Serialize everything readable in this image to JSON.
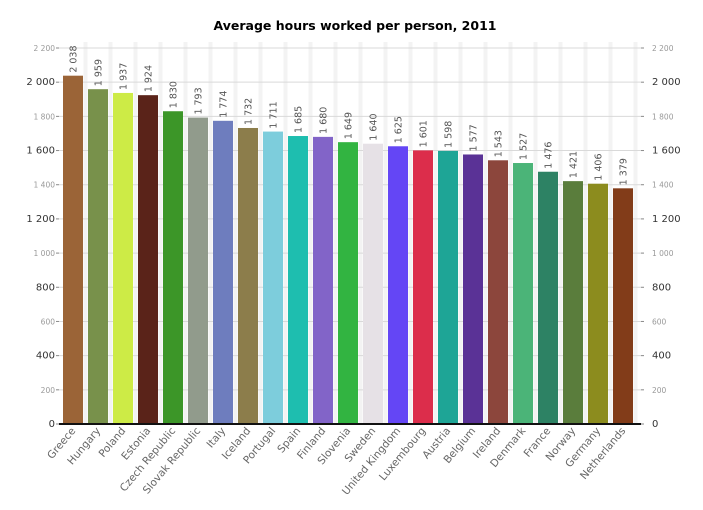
{
  "chart_data": {
    "type": "bar",
    "title": "Average hours worked per person, 2011",
    "xlabel": "",
    "ylabel": "",
    "ylim": [
      0,
      2200
    ],
    "grid": true,
    "major_ticks": [
      0,
      400,
      800,
      1200,
      1600,
      2000
    ],
    "minor_ticks": [
      200,
      600,
      1000,
      1400,
      1800,
      2200
    ],
    "tick_labels": {
      "0": "0",
      "200": "200",
      "400": "400",
      "600": "600",
      "800": "800",
      "1000": "1 000",
      "1200": "1 200",
      "1400": "1 400",
      "1600": "1 600",
      "1800": "1 800",
      "2000": "2 000",
      "2200": "2 200"
    },
    "categories": [
      "Greece",
      "Hungary",
      "Poland",
      "Estonia",
      "Czech Republic",
      "Slovak Republic",
      "Italy",
      "Iceland",
      "Portugal",
      "Spain",
      "Finland",
      "Slovenia",
      "Sweden",
      "United Kingdom",
      "Luxembourg",
      "Austria",
      "Belgium",
      "Ireland",
      "Denmark",
      "France",
      "Norway",
      "Germany",
      "Netherlands"
    ],
    "values": [
      2038,
      1959,
      1937,
      1924,
      1830,
      1793,
      1774,
      1732,
      1711,
      1685,
      1680,
      1649,
      1640,
      1625,
      1601,
      1598,
      1577,
      1543,
      1527,
      1476,
      1421,
      1406,
      1379
    ],
    "value_labels": [
      "2 038",
      "1 959",
      "1 937",
      "1 924",
      "1 830",
      "1 793",
      "1 774",
      "1 732",
      "1 711",
      "1 685",
      "1 680",
      "1 649",
      "1 640",
      "1 625",
      "1 601",
      "1 598",
      "1 577",
      "1 543",
      "1 527",
      "1 476",
      "1 421",
      "1 406",
      "1 379"
    ],
    "colors": [
      "#9b6437",
      "#78914b",
      "#cdeb46",
      "#5a2319",
      "#3c9628",
      "#919b8c",
      "#6e7dbe",
      "#8c7d4b",
      "#7dcddc",
      "#1ebeaf",
      "#8264c8",
      "#32b441",
      "#e6e1e6",
      "#6446f5",
      "#dc2d4b",
      "#1ea596",
      "#5a3296",
      "#8c463c",
      "#4bb478",
      "#2d8264",
      "#5a7d3c",
      "#8c8c1e",
      "#823c19"
    ],
    "gridline_color": "#d9d9d9",
    "stripe_color": "#f3f3f3"
  }
}
